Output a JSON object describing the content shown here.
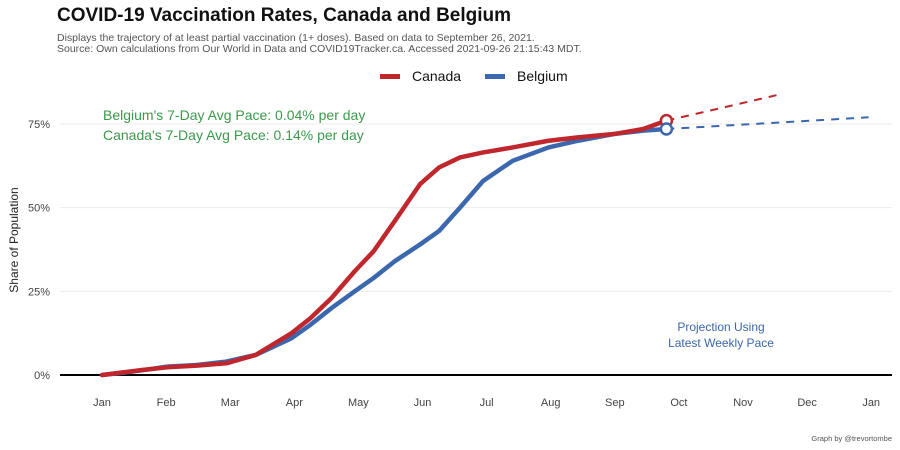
{
  "title": "COVID-19 Vaccination Rates, Canada and Belgium",
  "subtitle_line1": "Displays the trajectory of at least partial vaccination (1+ doses). Based on data to September 26, 2021.",
  "subtitle_line2": "Source: Own calculations from Our World in Data and COVID19Tracker.ca. Accessed 2021-09-26 21:15:43 MDT.",
  "caption": "Graph by @trevortombe",
  "colors": {
    "canada": "#c0272d",
    "belgium": "#3a67ad",
    "pace_text": "#3a9a4a",
    "projection_text": "#3a67ad",
    "grid": "#ebebeb",
    "axis_text": "#444444"
  },
  "chart_data": {
    "type": "line",
    "ylabel": "Share of Population",
    "yticks": [
      0,
      25,
      50,
      75
    ],
    "ytick_labels": [
      "0%",
      "25%",
      "50%",
      "75%"
    ],
    "xticks": [
      "Jan",
      "Feb",
      "Mar",
      "Apr",
      "May",
      "Jun",
      "Jul",
      "Aug",
      "Sep",
      "Oct",
      "Nov",
      "Dec",
      "Jan"
    ],
    "ylim": [
      -3,
      85
    ],
    "legend": {
      "position": "top",
      "entries": [
        "Canada",
        "Belgium"
      ]
    },
    "annotations": {
      "belgium_pace": "Belgium's 7-Day Avg Pace: 0.04% per day",
      "canada_pace": "Canada's 7-Day Avg Pace: 0.14% per day",
      "projection_line1": "Projection Using",
      "projection_line2": "Latest Weekly Pace"
    },
    "series": [
      {
        "name": "Canada",
        "x": [
          "2021-01-01",
          "2021-01-10",
          "2021-01-20",
          "2021-02-01",
          "2021-02-15",
          "2021-03-01",
          "2021-03-15",
          "2021-04-01",
          "2021-04-10",
          "2021-04-20",
          "2021-05-01",
          "2021-05-10",
          "2021-05-20",
          "2021-06-01",
          "2021-06-10",
          "2021-06-20",
          "2021-07-01",
          "2021-07-15",
          "2021-08-01",
          "2021-08-15",
          "2021-09-01",
          "2021-09-15",
          "2021-09-26"
        ],
        "values": [
          0,
          0.7,
          1.5,
          2.3,
          2.8,
          3.5,
          6,
          12.5,
          17,
          23,
          31,
          37,
          46,
          57,
          62,
          65,
          66.5,
          68,
          70,
          71,
          72,
          73.5,
          76
        ]
      },
      {
        "name": "Belgium",
        "x": [
          "2021-01-01",
          "2021-01-10",
          "2021-01-20",
          "2021-02-01",
          "2021-02-15",
          "2021-03-01",
          "2021-03-15",
          "2021-04-01",
          "2021-04-10",
          "2021-04-20",
          "2021-05-01",
          "2021-05-10",
          "2021-05-20",
          "2021-06-01",
          "2021-06-10",
          "2021-06-20",
          "2021-07-01",
          "2021-07-15",
          "2021-08-01",
          "2021-08-15",
          "2021-09-01",
          "2021-09-15",
          "2021-09-26"
        ],
        "values": [
          0,
          0.6,
          1.4,
          2.5,
          3.0,
          4.0,
          6,
          11,
          15,
          20,
          25,
          29,
          34,
          39,
          43,
          50,
          58,
          64,
          68,
          70,
          72,
          73,
          73.5
        ]
      }
    ],
    "projections": [
      {
        "name": "Canada",
        "x": [
          "2021-09-26",
          "2021-11-20"
        ],
        "values": [
          76,
          84
        ]
      },
      {
        "name": "Belgium",
        "x": [
          "2021-09-26",
          "2021-12-31"
        ],
        "values": [
          73.5,
          77
        ]
      }
    ]
  }
}
